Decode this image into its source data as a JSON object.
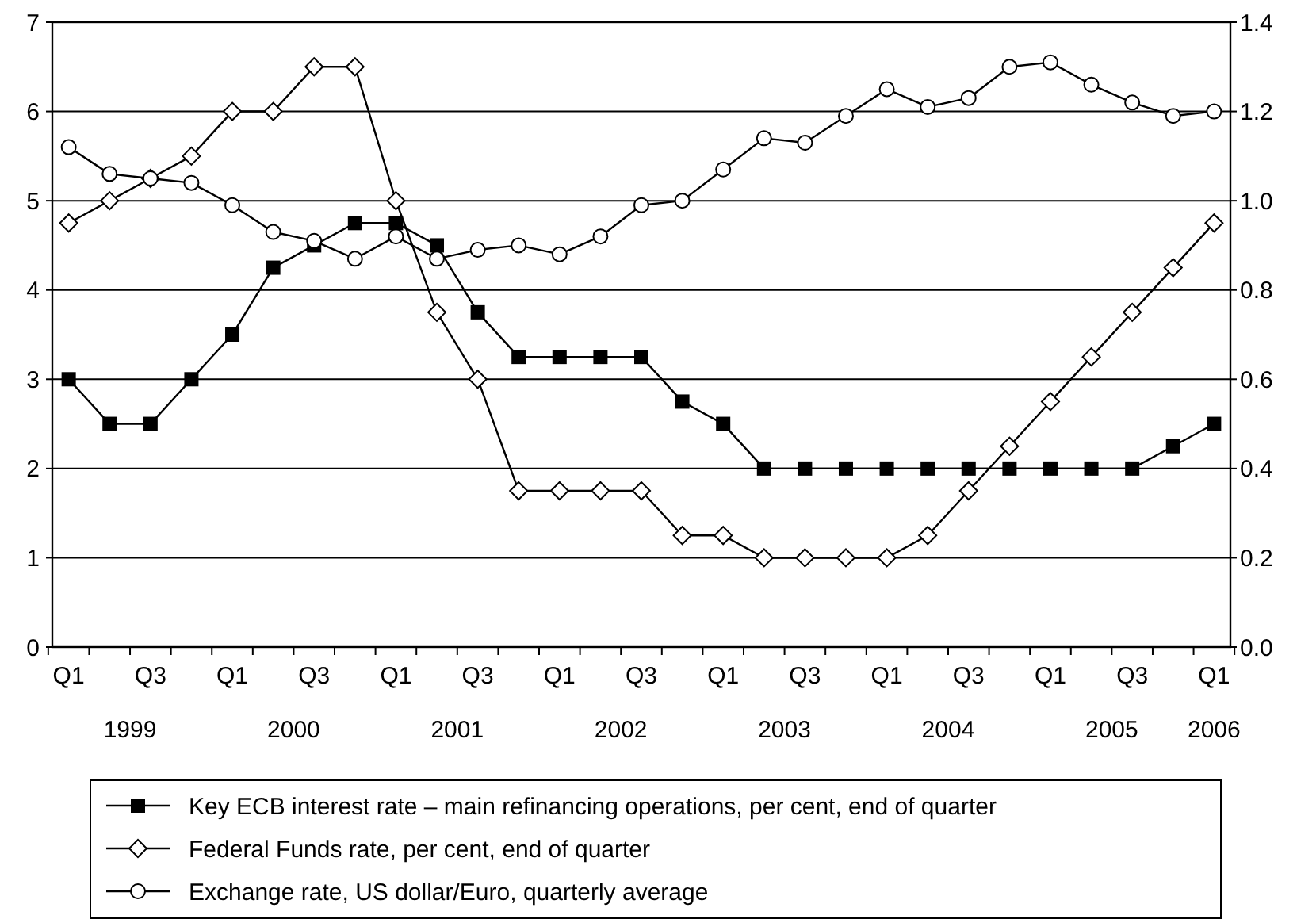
{
  "chart_data": {
    "type": "line",
    "categories": [
      "Q1",
      null,
      "Q3",
      null,
      "Q1",
      null,
      "Q3",
      null,
      "Q1",
      null,
      "Q3",
      null,
      "Q1",
      null,
      "Q3",
      null,
      "Q1",
      null,
      "Q3",
      null,
      "Q1",
      null,
      "Q3",
      null,
      "Q1",
      null,
      "Q3",
      null,
      "Q1"
    ],
    "series": [
      {
        "name": "Key ECB interest rate – main refinancing operations, per cent, end of quarter",
        "color": "#000000",
        "marker": "square",
        "values": [
          3,
          2.5,
          2.5,
          3,
          3.5,
          4.25,
          4.5,
          4.75,
          4.75,
          4.5,
          3.75,
          3.25,
          3.25,
          3.25,
          3.25,
          2.75,
          2.5,
          2,
          2,
          2,
          2,
          2,
          2,
          2,
          2,
          2,
          2,
          2.25,
          2.5
        ]
      },
      {
        "name": "Federal Funds rate, per cent, end of quarter",
        "color": "#000000",
        "marker": "diamond",
        "values": [
          4.75,
          5,
          5.25,
          5.5,
          6,
          6,
          6.5,
          6.5,
          5,
          3.75,
          3,
          1.75,
          1.75,
          1.75,
          1.75,
          1.25,
          1.25,
          1,
          1,
          1,
          1,
          1.25,
          1.75,
          2.25,
          2.75,
          3.25,
          3.75,
          4.25,
          4.75
        ]
      },
      {
        "name": "Exchange rate, US dollar/Euro, quarterly average",
        "color": "#000000",
        "marker": "circle",
        "axis": "y2",
        "values": [
          1.12,
          1.06,
          1.05,
          1.04,
          0.99,
          0.93,
          0.91,
          0.87,
          0.92,
          0.87,
          0.89,
          0.9,
          0.88,
          0.92,
          0.99,
          1.0,
          1.07,
          1.14,
          1.13,
          1.19,
          1.25,
          1.21,
          1.23,
          1.3,
          1.31,
          1.26,
          1.22,
          1.19,
          1.2
        ]
      }
    ],
    "ylim": [
      0,
      7
    ],
    "yticks": [
      0,
      1,
      2,
      3,
      4,
      5,
      6,
      7
    ],
    "y2lim": [
      0,
      1.4
    ],
    "y2ticks": [
      {
        "value": 0,
        "label": "0.0"
      },
      {
        "value": 0.2,
        "label": "0.2"
      },
      {
        "value": 0.4,
        "label": "0.4"
      },
      {
        "value": 0.6,
        "label": "0.6"
      },
      {
        "value": 0.8,
        "label": "0.8"
      },
      {
        "value": 1.0,
        "label": "1.0"
      },
      {
        "value": 1.2,
        "label": "1.2"
      },
      {
        "value": 1.4,
        "label": "1.4"
      }
    ],
    "annotations": [
      "1999",
      "2000",
      "2001",
      "2002",
      "2003",
      "2004",
      "2005",
      "2006"
    ],
    "grid": "y",
    "legend": "bottom",
    "line_style": "solid"
  }
}
